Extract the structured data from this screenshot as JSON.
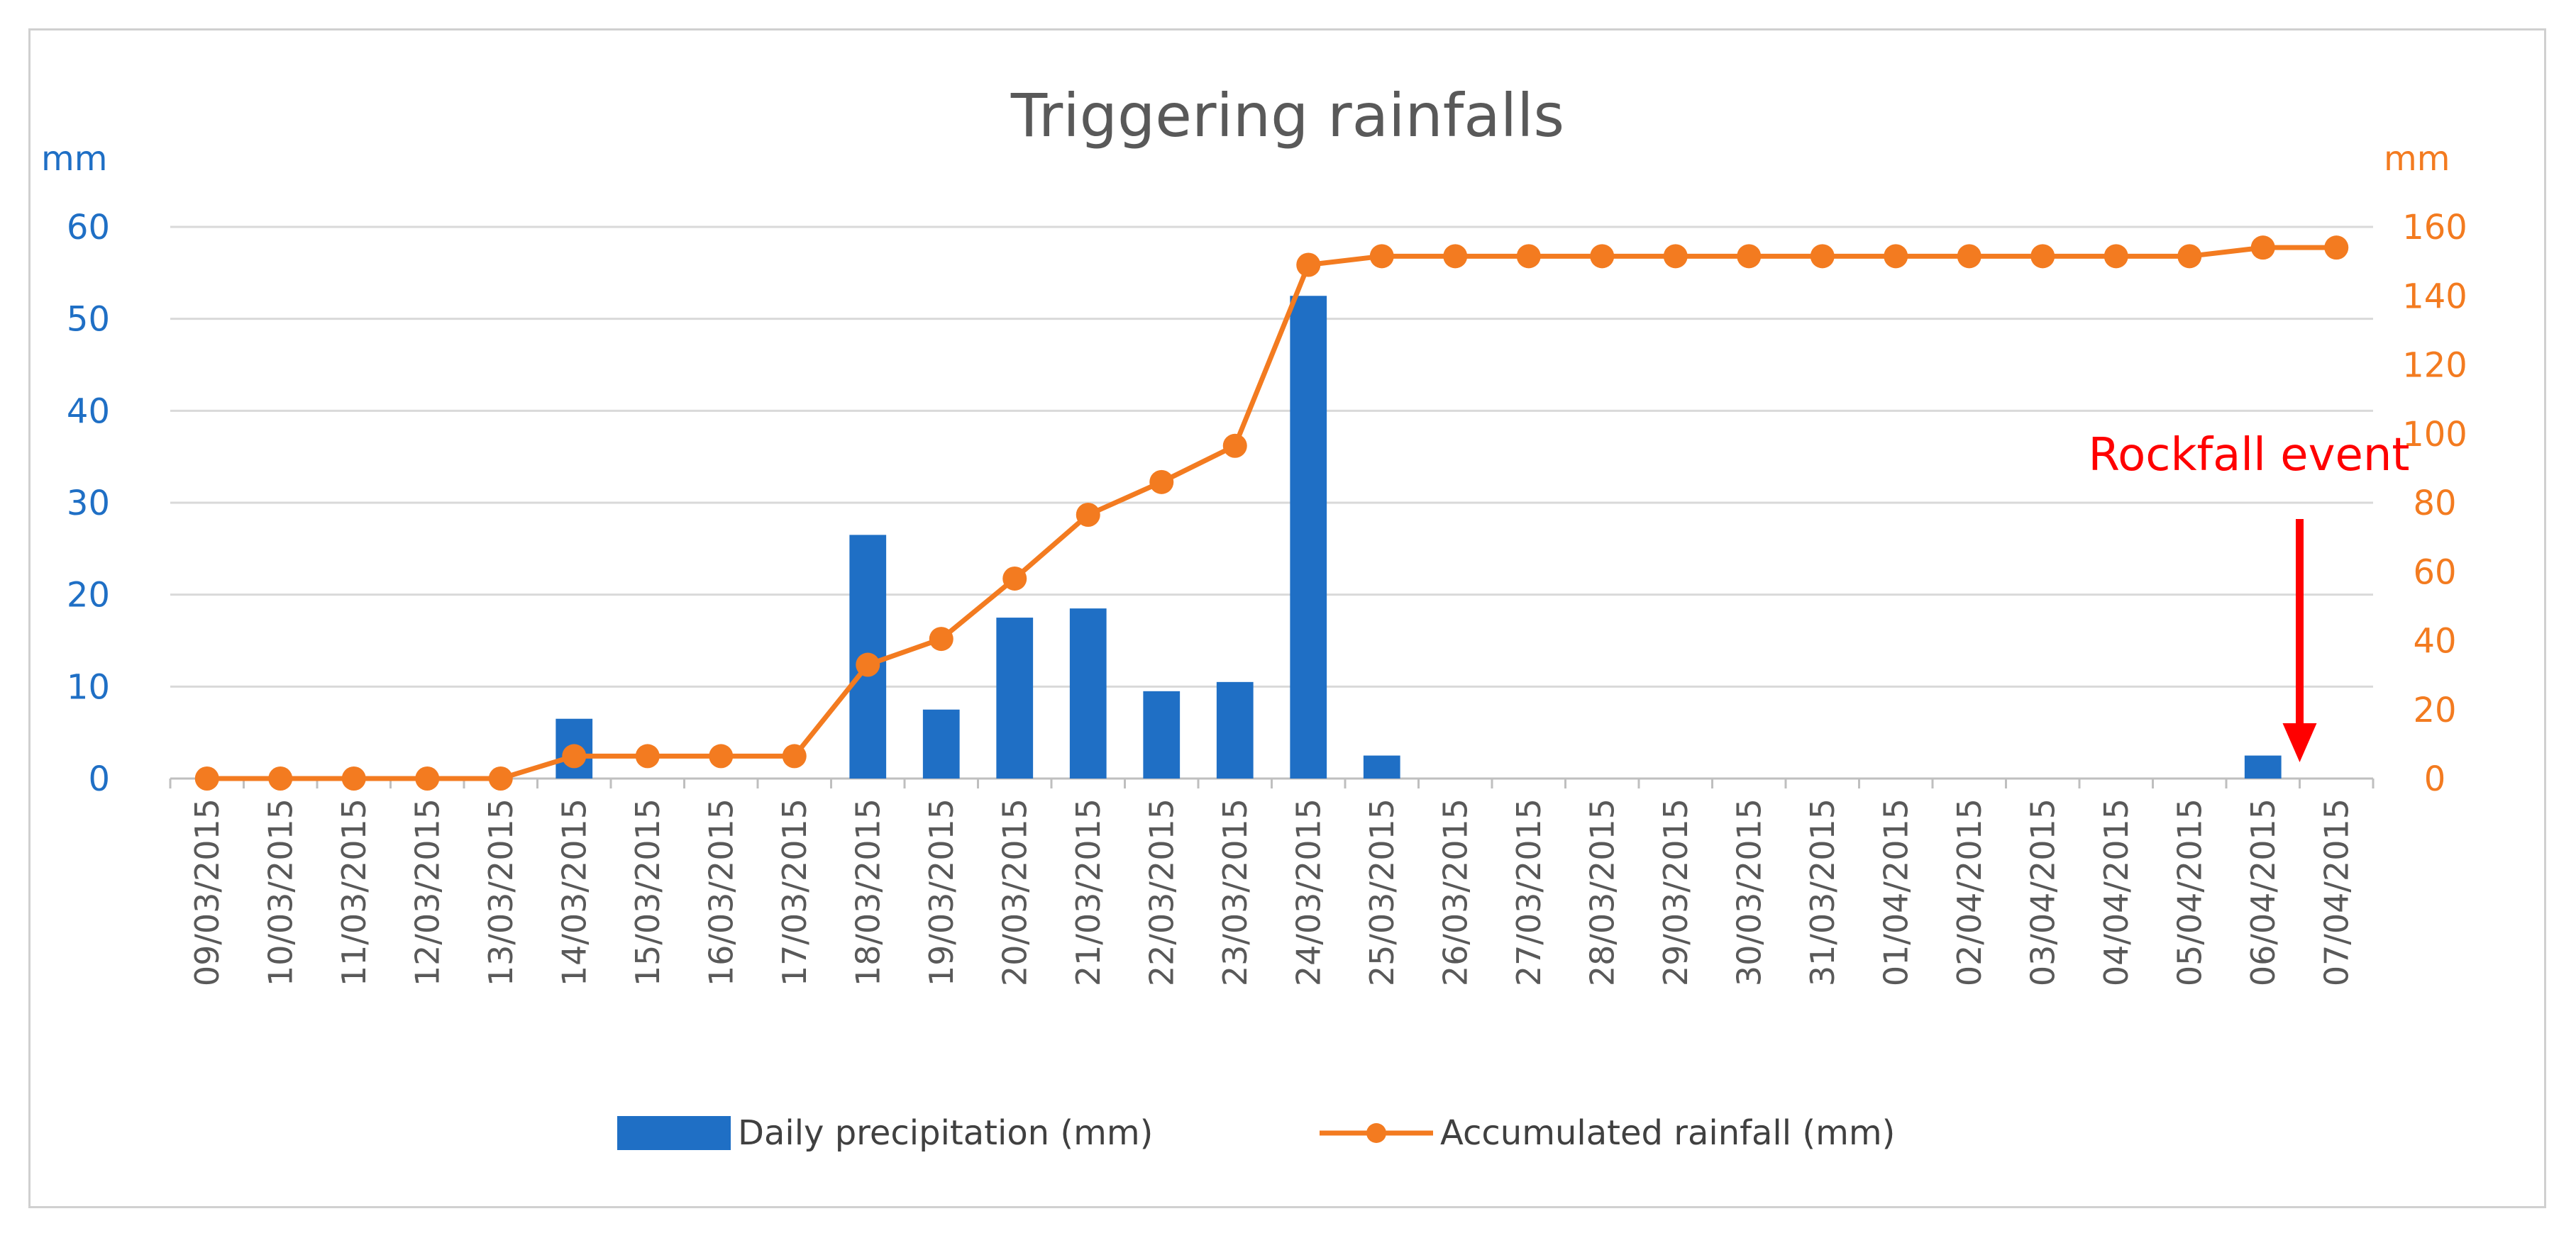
{
  "chart_data": {
    "type": "bar",
    "title": "Triggering rainfalls",
    "categories": [
      "09/03/2015",
      "10/03/2015",
      "11/03/2015",
      "12/03/2015",
      "13/03/2015",
      "14/03/2015",
      "15/03/2015",
      "16/03/2015",
      "17/03/2015",
      "18/03/2015",
      "19/03/2015",
      "20/03/2015",
      "21/03/2015",
      "22/03/2015",
      "23/03/2015",
      "24/03/2015",
      "25/03/2015",
      "26/03/2015",
      "27/03/2015",
      "28/03/2015",
      "29/03/2015",
      "30/03/2015",
      "31/03/2015",
      "01/04/2015",
      "02/04/2015",
      "03/04/2015",
      "04/04/2015",
      "05/04/2015",
      "06/04/2015",
      "07/04/2015"
    ],
    "series": [
      {
        "name": "Daily precipitation (mm)",
        "type": "bar",
        "axis": "left",
        "color": "#1f6fc5",
        "values": [
          0,
          0,
          0,
          0,
          0,
          6.5,
          0,
          0,
          0,
          26.5,
          7.5,
          17.5,
          18.5,
          9.5,
          10.5,
          52.5,
          2.5,
          0,
          0,
          0,
          0,
          0,
          0,
          0,
          0,
          0,
          0,
          0,
          2.5,
          0
        ]
      },
      {
        "name": "Accumulated rainfall (mm)",
        "type": "line",
        "axis": "right",
        "color": "#f37b20",
        "values": [
          0,
          0,
          0,
          0,
          0,
          6.5,
          6.5,
          6.5,
          6.5,
          33,
          40.5,
          58,
          76.5,
          86,
          96.5,
          149,
          151.5,
          151.5,
          151.5,
          151.5,
          151.5,
          151.5,
          151.5,
          151.5,
          151.5,
          151.5,
          151.5,
          151.5,
          154,
          154
        ]
      }
    ],
    "y_left": {
      "label": "mm",
      "ylim": [
        0,
        60
      ],
      "ticks": [
        0,
        10,
        20,
        30,
        40,
        50,
        60
      ]
    },
    "y_right": {
      "label": "mm",
      "ylim": [
        0,
        160
      ],
      "ticks": [
        0,
        20,
        40,
        60,
        80,
        100,
        120,
        140,
        160
      ]
    },
    "grid": true,
    "legend_position": "bottom",
    "annotation": {
      "text": "Rockfall event",
      "target_category": "06/04/2015",
      "color": "#ff0000"
    }
  }
}
